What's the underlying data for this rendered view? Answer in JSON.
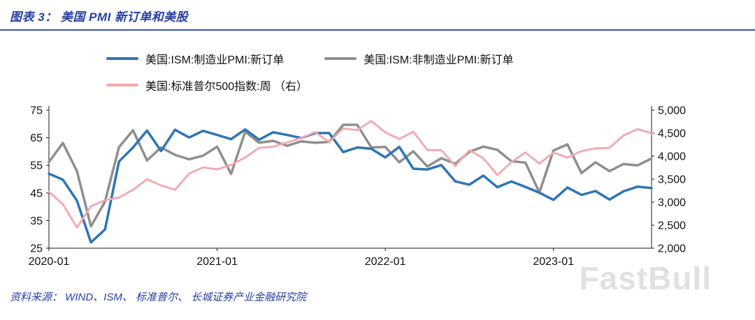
{
  "header": {
    "title": "图表 3： 美国 PMI 新订单和美股"
  },
  "colors": {
    "accent": "#273FA3",
    "rule": "#3A57A8",
    "axis": "#1a1a1a",
    "watermark": "#c9c9c9"
  },
  "legend": [
    {
      "label": "美国:ISM:制造业PMI:新订单",
      "color": "#2E75B6"
    },
    {
      "label": "美国:ISM:非制造业PMI:新订单",
      "color": "#8E8E8E"
    },
    {
      "label": "美国:标准普尔500指数:周 （右）",
      "color": "#F4A7AE"
    }
  ],
  "chart_data": {
    "type": "line",
    "title": "美国 PMI 新订单和美股",
    "x": [
      "2020-01",
      "2020-02",
      "2020-03",
      "2020-04",
      "2020-05",
      "2020-06",
      "2020-07",
      "2020-08",
      "2020-09",
      "2020-10",
      "2020-11",
      "2020-12",
      "2021-01",
      "2021-02",
      "2021-03",
      "2021-04",
      "2021-05",
      "2021-06",
      "2021-07",
      "2021-08",
      "2021-09",
      "2021-10",
      "2021-11",
      "2021-12",
      "2022-01",
      "2022-02",
      "2022-03",
      "2022-04",
      "2022-05",
      "2022-06",
      "2022-07",
      "2022-08",
      "2022-09",
      "2022-10",
      "2022-11",
      "2022-12",
      "2023-01",
      "2023-02",
      "2023-03",
      "2023-04",
      "2023-05",
      "2023-06",
      "2023-07",
      "2023-08"
    ],
    "x_tick_labels": [
      "2020-01",
      "2021-01",
      "2022-01",
      "2023-01"
    ],
    "left_axis": {
      "min": 25,
      "max": 75,
      "ticks": [
        75,
        65,
        55,
        45,
        35,
        25
      ]
    },
    "right_axis": {
      "min": 2000,
      "max": 5000,
      "ticks": [
        5000,
        4500,
        4000,
        3500,
        3000,
        2500,
        2000
      ],
      "tick_labels": [
        "5,000",
        "4,500",
        "4,000",
        "3,500",
        "3,000",
        "2,500",
        "2,000"
      ]
    },
    "grid": false,
    "legend_position": "top",
    "series": [
      {
        "name": "美国:ISM:非制造业PMI:新订单",
        "axis": "left",
        "color": "#8E8E8E",
        "stroke_width": 3.5,
        "values": [
          56.2,
          63.1,
          52.9,
          32.9,
          41.9,
          61.6,
          67.7,
          56.8,
          61.5,
          58.8,
          57.2,
          58.5,
          61.8,
          51.9,
          67.2,
          63.2,
          63.9,
          62.1,
          63.7,
          63.2,
          63.5,
          69.7,
          69.7,
          61.5,
          61.7,
          56.1,
          60.1,
          54.6,
          57.6,
          55.6,
          59.9,
          61.8,
          60.6,
          56.5,
          56.0,
          45.2,
          60.4,
          62.6,
          52.2,
          56.1,
          52.9,
          55.5,
          55.0,
          57.5
        ]
      },
      {
        "name": "美国:ISM:制造业PMI:新订单",
        "axis": "left",
        "color": "#2E75B6",
        "stroke_width": 3.5,
        "values": [
          52.0,
          49.8,
          42.2,
          27.1,
          31.8,
          56.4,
          61.5,
          67.6,
          60.2,
          67.9,
          65.1,
          67.5,
          66.0,
          64.5,
          68.0,
          64.3,
          67.0,
          66.0,
          64.9,
          66.7,
          66.7,
          59.8,
          61.5,
          61.0,
          57.9,
          61.7,
          53.8,
          53.5,
          55.1,
          49.2,
          48.0,
          51.3,
          47.1,
          49.2,
          47.2,
          45.1,
          42.5,
          47.0,
          44.3,
          45.7,
          42.6,
          45.6,
          47.3,
          46.8
        ]
      },
      {
        "name": "美国:标准普尔500指数:周",
        "axis": "right",
        "color": "#F4A7AE",
        "stroke_width": 2.8,
        "values": [
          3226,
          2954,
          2450,
          2912,
          3044,
          3100,
          3271,
          3500,
          3363,
          3270,
          3622,
          3756,
          3714,
          3811,
          3973,
          4181,
          4204,
          4298,
          4395,
          4523,
          4308,
          4605,
          4567,
          4766,
          4516,
          4374,
          4530,
          4132,
          4132,
          3785,
          4130,
          3955,
          3586,
          3872,
          4080,
          3840,
          4077,
          3970,
          4109,
          4169,
          4180,
          4450,
          4589,
          4500
        ]
      }
    ]
  },
  "source": {
    "text": "资料来源： WIND、ISM、 标准普尔、 长城证券产业金融研究院"
  },
  "watermark": {
    "text": "FastBull"
  }
}
